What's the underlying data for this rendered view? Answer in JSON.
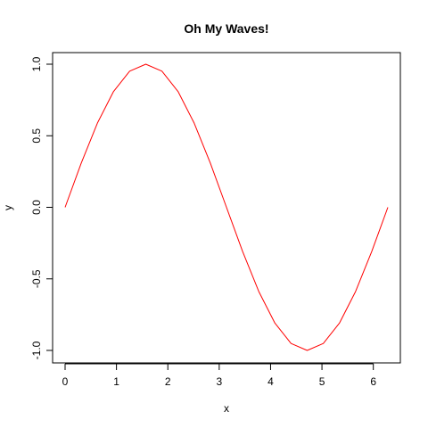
{
  "chart_data": {
    "type": "line",
    "title": "Oh My Waves!",
    "xlabel": "x",
    "ylabel": "y",
    "xlim": [
      0,
      6.283185
    ],
    "ylim": [
      -1,
      1
    ],
    "x_ticks": [
      0,
      1,
      2,
      3,
      4,
      5,
      6
    ],
    "x_tick_labels": [
      "0",
      "1",
      "2",
      "3",
      "4",
      "5",
      "6"
    ],
    "y_ticks": [
      -1,
      -0.5,
      0,
      0.5,
      1
    ],
    "y_tick_labels": [
      "-1.0",
      "-0.5",
      "0.0",
      "0.5",
      "1.0"
    ],
    "grid": false,
    "legend": "none",
    "series": [
      {
        "color": "#ff0000",
        "x": [
          0,
          0.3142,
          0.6283,
          0.9425,
          1.2566,
          1.5708,
          1.885,
          2.1991,
          2.5133,
          2.8274,
          3.1416,
          3.4558,
          3.7699,
          4.0841,
          4.3982,
          4.7124,
          5.0265,
          5.3407,
          5.6549,
          5.969,
          6.2832
        ],
        "y": [
          0,
          0.309,
          0.5878,
          0.809,
          0.9511,
          1,
          0.9511,
          0.809,
          0.5878,
          0.309,
          0,
          -0.309,
          -0.5878,
          -0.809,
          -0.9511,
          -1,
          -0.9511,
          -0.809,
          -0.5878,
          -0.309,
          0
        ]
      }
    ]
  }
}
